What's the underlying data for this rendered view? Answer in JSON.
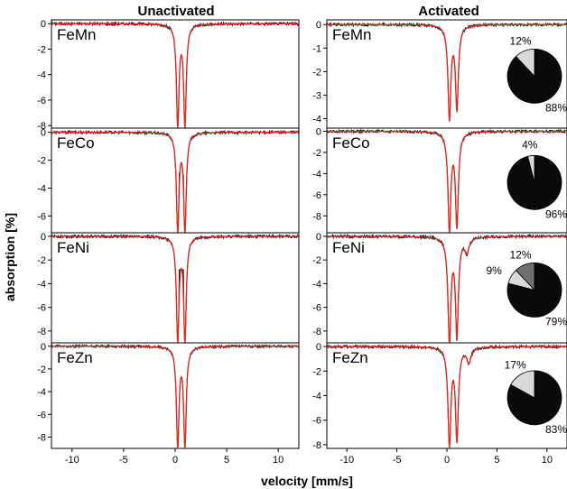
{
  "figure": {
    "column_titles": [
      "Unactivated",
      "Activated"
    ],
    "ylabel": "absorption [%]",
    "xlabel": "velocity [mm/s]"
  },
  "colors": {
    "data_trace": "#111111",
    "fit_trace": "#e0291f",
    "pie_major": "#0a0a0a",
    "pie_minor": "#d9d9d9",
    "pie_mid": "#707070"
  },
  "chart_data": [
    {
      "type": "line",
      "column": "Unactivated",
      "sample": "FeMn",
      "xlim": [
        -12,
        12
      ],
      "ylim": [
        -8.2,
        0.3
      ],
      "x_ticks": [
        -10,
        -5,
        0,
        5,
        10
      ],
      "y_ticks": [
        0,
        -2,
        -4,
        -6,
        -8
      ],
      "peaks": [
        {
          "x": 0.25,
          "depth": 7.9,
          "width": 0.3
        },
        {
          "x": 0.95,
          "depth": 7.9,
          "width": 0.3
        }
      ],
      "data_center_depth": 4.5,
      "series": [
        {
          "name": "",
          "role": "measured"
        },
        {
          "name": "",
          "role": "fit"
        }
      ]
    },
    {
      "type": "line",
      "column": "Unactivated",
      "sample": "FeCo",
      "xlim": [
        -12,
        12
      ],
      "ylim": [
        -7.2,
        0.3
      ],
      "x_ticks": [
        -10,
        -5,
        0,
        5,
        10
      ],
      "y_ticks": [
        0,
        -2,
        -4,
        -6
      ],
      "peaks": [
        {
          "x": 0.25,
          "depth": 7.0,
          "width": 0.3
        },
        {
          "x": 0.95,
          "depth": 7.0,
          "width": 0.3
        }
      ],
      "data_center_depth": 3.0,
      "series": [
        {
          "name": "",
          "role": "measured"
        },
        {
          "name": "",
          "role": "fit"
        }
      ]
    },
    {
      "type": "line",
      "column": "Unactivated",
      "sample": "FeNi",
      "xlim": [
        -12,
        12
      ],
      "ylim": [
        -9.0,
        0.3
      ],
      "x_ticks": [
        -10,
        -5,
        0,
        5,
        10
      ],
      "y_ticks": [
        0,
        -2,
        -4,
        -6,
        -8
      ],
      "peaks": [
        {
          "x": 0.25,
          "depth": 8.7,
          "width": 0.3
        },
        {
          "x": 0.95,
          "depth": 8.7,
          "width": 0.3
        }
      ],
      "data_center_depth": 2.9,
      "series": [
        {
          "name": "",
          "role": "measured"
        },
        {
          "name": "",
          "role": "fit"
        }
      ]
    },
    {
      "type": "line",
      "column": "Unactivated",
      "sample": "FeZn",
      "xlim": [
        -12,
        12
      ],
      "ylim": [
        -9.0,
        0.3
      ],
      "x_ticks": [
        -10,
        -5,
        0,
        5,
        10
      ],
      "y_ticks": [
        0,
        -2,
        -4,
        -6,
        -8
      ],
      "peaks": [
        {
          "x": 0.25,
          "depth": 8.7,
          "width": 0.3
        },
        {
          "x": 0.95,
          "depth": 8.7,
          "width": 0.3
        }
      ],
      "data_center_depth": 6.2,
      "series": [
        {
          "name": "",
          "role": "measured"
        },
        {
          "name": "",
          "role": "fit"
        }
      ]
    },
    {
      "type": "line",
      "column": "Activated",
      "sample": "FeMn",
      "xlim": [
        -12,
        12
      ],
      "ylim": [
        -4.4,
        0.2
      ],
      "x_ticks": [
        -10,
        -5,
        0,
        5,
        10
      ],
      "y_ticks": [
        0,
        -1,
        -2,
        -3,
        -4
      ],
      "peaks": [
        {
          "x": 0.25,
          "depth": 3.9,
          "width": 0.35
        },
        {
          "x": 1.0,
          "depth": 3.5,
          "width": 0.35
        }
      ],
      "data_center_depth": 2.9,
      "series": [
        {
          "name": "",
          "role": "measured"
        },
        {
          "name": "",
          "role": "fit"
        }
      ],
      "pie": [
        {
          "label": "88%",
          "value": 88
        },
        {
          "label": "12%",
          "value": 12
        }
      ]
    },
    {
      "type": "line",
      "column": "Activated",
      "sample": "FeCo",
      "xlim": [
        -12,
        12
      ],
      "ylim": [
        -9.6,
        0.3
      ],
      "x_ticks": [
        -10,
        -5,
        0,
        5,
        10
      ],
      "y_ticks": [
        0,
        -2,
        -4,
        -6,
        -8
      ],
      "peaks": [
        {
          "x": 0.25,
          "depth": 9.2,
          "width": 0.35
        },
        {
          "x": 1.0,
          "depth": 8.8,
          "width": 0.35
        }
      ],
      "data_center_depth": 7.3,
      "series": [
        {
          "name": "",
          "role": "measured"
        },
        {
          "name": "",
          "role": "fit"
        }
      ],
      "pie": [
        {
          "label": "96%",
          "value": 96
        },
        {
          "label": "4%",
          "value": 4
        }
      ]
    },
    {
      "type": "line",
      "column": "Activated",
      "sample": "FeNi",
      "xlim": [
        -12,
        12
      ],
      "ylim": [
        -9.0,
        0.3
      ],
      "x_ticks": [
        -10,
        -5,
        0,
        5,
        10
      ],
      "y_ticks": [
        0,
        -2,
        -4,
        -6,
        -8
      ],
      "peaks": [
        {
          "x": 0.25,
          "depth": 8.8,
          "width": 0.35
        },
        {
          "x": 1.0,
          "depth": 8.2,
          "width": 0.35
        },
        {
          "x": 2.0,
          "depth": 1.2,
          "width": 0.5
        }
      ],
      "data_center_depth": 6.0,
      "series": [
        {
          "name": "",
          "role": "measured"
        },
        {
          "name": "",
          "role": "fit"
        }
      ],
      "pie": [
        {
          "label": "79%",
          "value": 79
        },
        {
          "label": "9%",
          "value": 9
        },
        {
          "label": "12%",
          "value": 12
        }
      ]
    },
    {
      "type": "line",
      "column": "Activated",
      "sample": "FeZn",
      "xlim": [
        -12,
        12
      ],
      "ylim": [
        -8.3,
        0.3
      ],
      "x_ticks": [
        -10,
        -5,
        0,
        5,
        10
      ],
      "y_ticks": [
        0,
        -2,
        -4,
        -6,
        -8
      ],
      "peaks": [
        {
          "x": 0.25,
          "depth": 7.9,
          "width": 0.35
        },
        {
          "x": 1.0,
          "depth": 7.4,
          "width": 0.35
        },
        {
          "x": 2.2,
          "depth": 1.2,
          "width": 0.5
        }
      ],
      "data_center_depth": 5.3,
      "series": [
        {
          "name": "",
          "role": "measured"
        },
        {
          "name": "",
          "role": "fit"
        }
      ],
      "pie": [
        {
          "label": "83%",
          "value": 83
        },
        {
          "label": "17%",
          "value": 17
        }
      ]
    }
  ]
}
